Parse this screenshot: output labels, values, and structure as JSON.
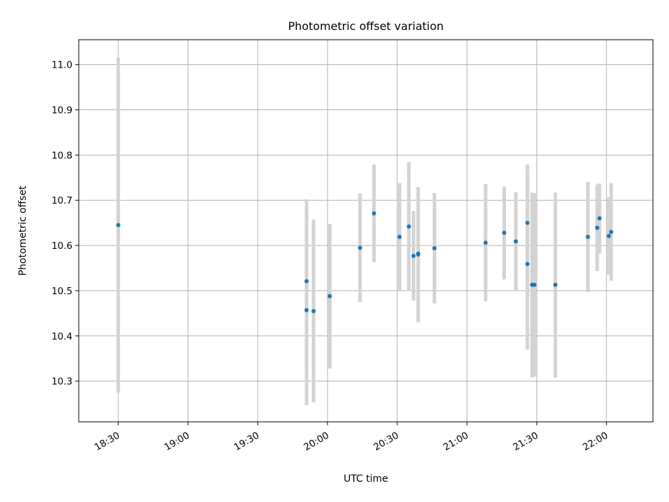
{
  "chart_data": {
    "type": "scatter",
    "title": "Photometric offset variation",
    "xlabel": "UTC time",
    "ylabel": "Photometric offset",
    "x_unit": "HH:MM",
    "xlim": [
      "18:13",
      "22:20"
    ],
    "ylim": [
      10.21,
      11.055
    ],
    "grid": true,
    "x_ticks": [
      "18:30",
      "19:00",
      "19:30",
      "20:00",
      "20:30",
      "21:00",
      "21:30",
      "22:00"
    ],
    "y_ticks": [
      "10.3",
      "10.4",
      "10.5",
      "10.6",
      "10.7",
      "10.8",
      "10.9",
      "11.0"
    ],
    "colors": {
      "marker": "#1f77b4",
      "errorbar": "#d3d3d3",
      "grid": "#b0b0b0"
    },
    "points": [
      {
        "x": "18:30",
        "y": 10.645,
        "low": 10.275,
        "high": 11.015
      },
      {
        "x": "19:51",
        "y": 10.457,
        "low": 10.247,
        "high": 10.667
      },
      {
        "x": "19:51",
        "y": 10.521,
        "low": 10.34,
        "high": 10.702
      },
      {
        "x": "19:54",
        "y": 10.455,
        "low": 10.253,
        "high": 10.657
      },
      {
        "x": "20:01",
        "y": 10.488,
        "low": 10.328,
        "high": 10.648
      },
      {
        "x": "20:14",
        "y": 10.595,
        "low": 10.475,
        "high": 10.715
      },
      {
        "x": "20:20",
        "y": 10.671,
        "low": 10.563,
        "high": 10.779
      },
      {
        "x": "20:31",
        "y": 10.619,
        "low": 10.5,
        "high": 10.738
      },
      {
        "x": "20:35",
        "y": 10.642,
        "low": 10.5,
        "high": 10.784
      },
      {
        "x": "20:37",
        "y": 10.577,
        "low": 10.478,
        "high": 10.676
      },
      {
        "x": "20:39",
        "y": 10.58,
        "low": 10.43,
        "high": 10.729
      },
      {
        "x": "20:39",
        "y": 10.582,
        "low": 10.448,
        "high": 10.716
      },
      {
        "x": "20:46",
        "y": 10.594,
        "low": 10.472,
        "high": 10.716
      },
      {
        "x": "21:08",
        "y": 10.606,
        "low": 10.476,
        "high": 10.736
      },
      {
        "x": "21:16",
        "y": 10.628,
        "low": 10.525,
        "high": 10.73
      },
      {
        "x": "21:21",
        "y": 10.609,
        "low": 10.5,
        "high": 10.718
      },
      {
        "x": "21:26",
        "y": 10.65,
        "low": 10.52,
        "high": 10.779
      },
      {
        "x": "21:26",
        "y": 10.559,
        "low": 10.37,
        "high": 10.748
      },
      {
        "x": "21:28",
        "y": 10.513,
        "low": 10.308,
        "high": 10.717
      },
      {
        "x": "21:29",
        "y": 10.513,
        "low": 10.31,
        "high": 10.716
      },
      {
        "x": "21:38",
        "y": 10.513,
        "low": 10.308,
        "high": 10.717
      },
      {
        "x": "21:52",
        "y": 10.619,
        "low": 10.497,
        "high": 10.74
      },
      {
        "x": "21:56",
        "y": 10.639,
        "low": 10.543,
        "high": 10.735
      },
      {
        "x": "21:57",
        "y": 10.66,
        "low": 10.582,
        "high": 10.737
      },
      {
        "x": "22:01",
        "y": 10.621,
        "low": 10.535,
        "high": 10.707
      },
      {
        "x": "22:02",
        "y": 10.63,
        "low": 10.522,
        "high": 10.738
      }
    ]
  }
}
